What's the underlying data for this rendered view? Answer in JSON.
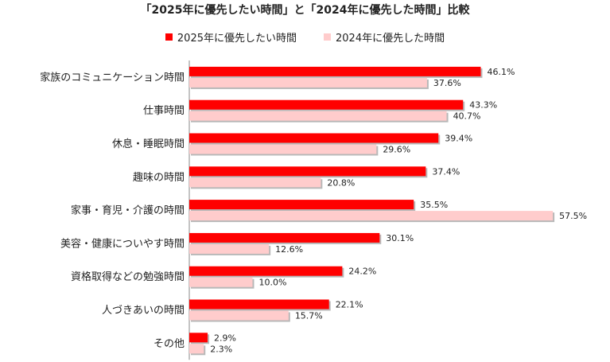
{
  "chart_data": {
    "type": "bar",
    "orientation": "horizontal",
    "title": "「2025年に優先したい時間」と「2024年に優先した時間」比較",
    "categories": [
      "家族のコミュニケーション時間",
      "仕事時間",
      "休息・睡眠時間",
      "趣味の時間",
      "家事・育児・介護の時間",
      "美容・健康についやす時間",
      "資格取得などの勉強時間",
      "人づきあいの時間",
      "その他"
    ],
    "series": [
      {
        "name": "2025年に優先したい時間",
        "color": "#ff0000",
        "values": [
          46.1,
          43.3,
          39.4,
          37.4,
          35.5,
          30.1,
          24.2,
          22.1,
          2.9
        ]
      },
      {
        "name": "2024年に優先した時間",
        "color": "#ffcccc",
        "values": [
          37.6,
          40.7,
          29.6,
          20.8,
          57.5,
          12.6,
          10.0,
          15.7,
          2.3
        ]
      }
    ],
    "value_suffix": "%",
    "xlim": [
      0,
      60
    ],
    "legend_position": "top",
    "grid": false
  }
}
